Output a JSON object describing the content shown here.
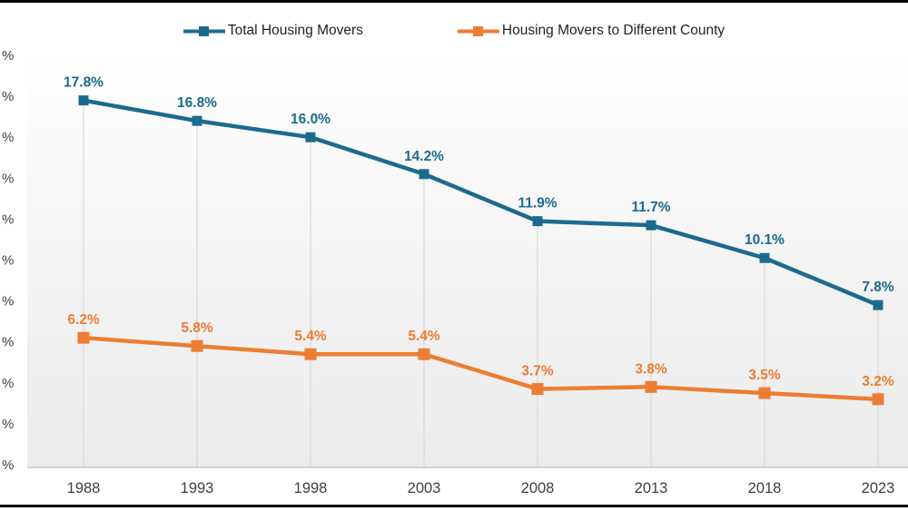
{
  "legend": {
    "items": [
      {
        "label": "Total Housing Movers"
      },
      {
        "label": "Housing Movers to Different County"
      }
    ]
  },
  "chart_data": {
    "type": "line",
    "title": "",
    "xlabel": "",
    "ylabel": "",
    "categories": [
      "1988",
      "1993",
      "1998",
      "2003",
      "2008",
      "2013",
      "2018",
      "2023"
    ],
    "series": [
      {
        "name": "Total Housing Movers",
        "color": "#1C6B8D",
        "values": [
          17.8,
          16.8,
          16.0,
          14.2,
          11.9,
          11.7,
          10.1,
          7.8
        ],
        "labels": [
          "17.8%",
          "16.8%",
          "16.0%",
          "14.2%",
          "11.9%",
          "11.7%",
          "10.1%",
          "7.8%"
        ],
        "marker": "square"
      },
      {
        "name": "Housing Movers to Different County",
        "color": "#EC7D33",
        "values": [
          6.2,
          5.8,
          5.4,
          5.4,
          3.7,
          3.8,
          3.5,
          3.2
        ],
        "labels": [
          "6.2%",
          "5.8%",
          "5.4%",
          "5.4%",
          "3.7%",
          "3.8%",
          "3.5%",
          "3.2%"
        ],
        "marker": "square"
      }
    ],
    "ylim": [
      0,
      20
    ],
    "y_tick_step": 2,
    "y_tick_label_visible": "%",
    "grid": "vertical-droplines",
    "legend_position": "top-center",
    "colors": {
      "axis_line": "#bfbfbf",
      "dropline": "#d9d9d9",
      "tick_text": "#3f3f3f"
    }
  }
}
